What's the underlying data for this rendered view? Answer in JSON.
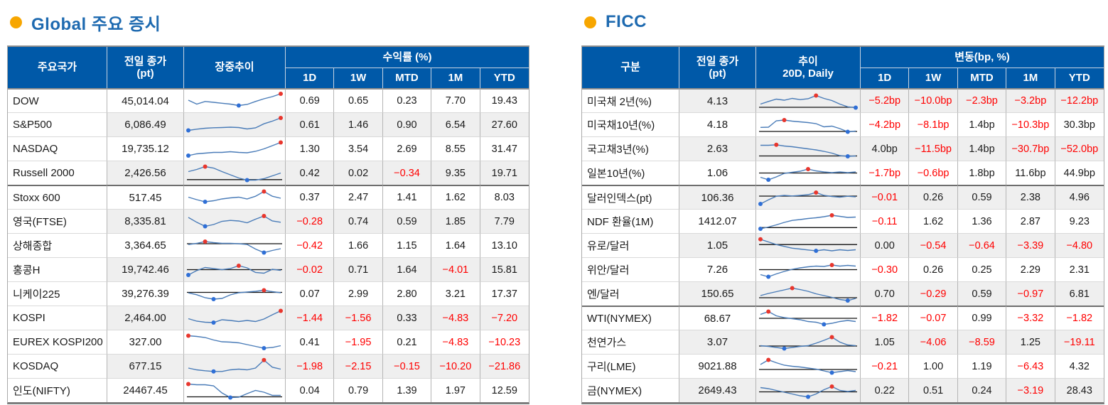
{
  "colors": {
    "header_bg": "#0059a8",
    "title": "#1e6ab0",
    "bullet": "#f7a600",
    "negative": "#ff0000",
    "row_alt": "#efefef",
    "spark_line": "#4a7cb8",
    "spark_max_dot": "#e8362d",
    "spark_min_dot": "#2f6fd6",
    "spark_baseline": "#111111"
  },
  "sections": [
    {
      "id": "global",
      "title": "Global 주요 증시",
      "stripe_start": "white",
      "header": {
        "col1": "주요국가",
        "col2_lines": [
          "전일 종가",
          "(pt)"
        ],
        "col3_lines": [
          "장중추이"
        ],
        "group": "수익률 (%)",
        "periods": [
          "1D",
          "1W",
          "MTD",
          "1M",
          "YTD"
        ]
      },
      "rows": [
        {
          "name": "DOW",
          "price": "45,014.04",
          "values": [
            "0.69",
            "0.65",
            "0.23",
            "7.70",
            "19.43"
          ],
          "spark": [
            0.52,
            0.3,
            0.45,
            0.4,
            0.35,
            0.3,
            0.22,
            0.28,
            0.45,
            0.6,
            0.72,
            0.88
          ],
          "baseline": null,
          "sep_after": false
        },
        {
          "name": "S&P500",
          "price": "6,086.49",
          "values": [
            "0.61",
            "1.46",
            "0.90",
            "6.54",
            "27.60"
          ],
          "spark": [
            0.18,
            0.25,
            0.3,
            0.33,
            0.34,
            0.36,
            0.34,
            0.26,
            0.32,
            0.55,
            0.7,
            0.88
          ],
          "baseline": null,
          "sep_after": false
        },
        {
          "name": "NASDAQ",
          "price": "19,735.12",
          "values": [
            "1.30",
            "3.54",
            "2.69",
            "8.55",
            "31.47"
          ],
          "spark": [
            0.12,
            0.22,
            0.26,
            0.3,
            0.3,
            0.34,
            0.3,
            0.28,
            0.36,
            0.5,
            0.68,
            0.86
          ],
          "baseline": null,
          "sep_after": false
        },
        {
          "name": "Russell 2000",
          "price": "2,426.56",
          "values": [
            "0.42",
            "0.02",
            "−0.34",
            "9.35",
            "19.71"
          ],
          "spark": [
            0.58,
            0.7,
            0.86,
            0.78,
            0.58,
            0.4,
            0.22,
            0.1,
            0.1,
            0.18,
            0.34,
            0.5
          ],
          "baseline": 0.13,
          "sep_after": true
        },
        {
          "name": "Stoxx 600",
          "price": "517.45",
          "values": [
            "0.37",
            "2.47",
            "1.41",
            "1.62",
            "8.03"
          ],
          "spark": [
            0.5,
            0.36,
            0.24,
            0.3,
            0.4,
            0.46,
            0.5,
            0.4,
            0.55,
            0.82,
            0.55,
            0.44
          ],
          "baseline": null,
          "sep_after": false
        },
        {
          "name": "영국(FTSE)",
          "price": "8,335.81",
          "values": [
            "−0.28",
            "0.74",
            "0.59",
            "1.85",
            "7.79"
          ],
          "spark": [
            0.72,
            0.45,
            0.22,
            0.32,
            0.5,
            0.55,
            0.52,
            0.42,
            0.62,
            0.8,
            0.52,
            0.45
          ],
          "baseline": null,
          "sep_after": false
        },
        {
          "name": "상해종합",
          "price": "3,364.65",
          "values": [
            "−0.42",
            "1.66",
            "1.15",
            "1.64",
            "13.10"
          ],
          "spark": [
            0.55,
            0.62,
            0.72,
            0.66,
            0.62,
            0.62,
            0.6,
            0.56,
            0.3,
            0.1,
            0.22,
            0.32
          ],
          "baseline": 0.6,
          "sep_after": false
        },
        {
          "name": "홍콩H",
          "price": "19,742.46",
          "values": [
            "−0.02",
            "0.71",
            "1.64",
            "−4.01",
            "15.81"
          ],
          "spark": [
            0.2,
            0.45,
            0.62,
            0.56,
            0.5,
            0.56,
            0.72,
            0.6,
            0.34,
            0.3,
            0.52,
            0.46
          ],
          "baseline": 0.5,
          "sep_after": false
        },
        {
          "name": "니케이225",
          "price": "39,276.39",
          "values": [
            "0.07",
            "2.99",
            "2.80",
            "3.21",
            "17.37"
          ],
          "spark": [
            0.55,
            0.45,
            0.28,
            0.2,
            0.24,
            0.44,
            0.56,
            0.6,
            0.64,
            0.7,
            0.62,
            0.56
          ],
          "baseline": 0.58,
          "sep_after": false
        },
        {
          "name": "KOSPI",
          "price": "2,464.00",
          "values": [
            "−1.44",
            "−1.56",
            "0.33",
            "−4.83",
            "−7.20"
          ],
          "spark": [
            0.46,
            0.32,
            0.26,
            0.24,
            0.4,
            0.36,
            0.3,
            0.36,
            0.3,
            0.44,
            0.68,
            0.9
          ],
          "baseline": null,
          "sep_after": false
        },
        {
          "name": "EUREX KOSPI200",
          "price": "327.00",
          "values": [
            "0.41",
            "−1.95",
            "0.21",
            "−4.83",
            "−10.23"
          ],
          "spark": [
            0.86,
            0.82,
            0.76,
            0.62,
            0.52,
            0.5,
            0.46,
            0.36,
            0.26,
            0.16,
            0.2,
            0.3
          ],
          "baseline": null,
          "sep_after": false
        },
        {
          "name": "KOSDAQ",
          "price": "677.15",
          "values": [
            "−1.98",
            "−2.15",
            "−0.15",
            "−10.20",
            "−21.86"
          ],
          "spark": [
            0.4,
            0.3,
            0.25,
            0.21,
            0.21,
            0.3,
            0.34,
            0.3,
            0.4,
            0.85,
            0.45,
            0.34
          ],
          "baseline": null,
          "sep_after": false
        },
        {
          "name": "인도(NIFTY)",
          "price": "24467.45",
          "values": [
            "0.04",
            "0.79",
            "1.39",
            "1.97",
            "12.59"
          ],
          "spark": [
            0.86,
            0.82,
            0.82,
            0.76,
            0.36,
            0.1,
            0.12,
            0.32,
            0.5,
            0.4,
            0.22,
            0.22
          ],
          "baseline": 0.14,
          "sep_after": false
        }
      ]
    },
    {
      "id": "ficc",
      "title": "FICC",
      "stripe_start": "gray",
      "header": {
        "col1": "구분",
        "col2_lines": [
          "전일 종가",
          "(pt)"
        ],
        "col3_lines": [
          "추이",
          "20D, Daily"
        ],
        "group": "변동(bp, %)",
        "periods": [
          "1D",
          "1W",
          "MTD",
          "1M",
          "YTD"
        ]
      },
      "rows": [
        {
          "name": "미국채 2년(%)",
          "price": "4.13",
          "values": [
            "−5.2bp",
            "−10.0bp",
            "−2.3bp",
            "−3.2bp",
            "−12.2bp"
          ],
          "spark": [
            0.3,
            0.45,
            0.58,
            0.52,
            0.62,
            0.55,
            0.6,
            0.78,
            0.62,
            0.5,
            0.3,
            0.15,
            0.1
          ],
          "baseline": 0.12,
          "sep_after": false
        },
        {
          "name": "미국채10년(%)",
          "price": "4.18",
          "values": [
            "−4.2bp",
            "−8.1bp",
            "1.4bp",
            "−10.3bp",
            "30.3bp"
          ],
          "spark": [
            0.35,
            0.36,
            0.72,
            0.76,
            0.7,
            0.66,
            0.62,
            0.56,
            0.38,
            0.42,
            0.28,
            0.1,
            0.14
          ],
          "baseline": 0.12,
          "sep_after": false
        },
        {
          "name": "국고채3년(%)",
          "price": "2.63",
          "values": [
            "4.0bp",
            "−11.5bp",
            "1.4bp",
            "−30.7bp",
            "−52.0bp"
          ],
          "spark": [
            0.7,
            0.7,
            0.73,
            0.66,
            0.62,
            0.56,
            0.5,
            0.44,
            0.36,
            0.26,
            0.12,
            0.08,
            0.1
          ],
          "baseline": 0.1,
          "sep_after": false
        },
        {
          "name": "일본10년(%)",
          "price": "1.06",
          "values": [
            "−1.7bp",
            "−0.6bp",
            "1.8bp",
            "11.6bp",
            "44.9bp"
          ],
          "spark": [
            0.26,
            0.12,
            0.28,
            0.48,
            0.54,
            0.6,
            0.72,
            0.62,
            0.56,
            0.52,
            0.56,
            0.52,
            0.56
          ],
          "baseline": 0.5,
          "sep_after": true
        },
        {
          "name": "달러인덱스(pt)",
          "price": "106.36",
          "values": [
            "−0.01",
            "0.26",
            "0.59",
            "2.38",
            "4.96"
          ],
          "spark": [
            0.12,
            0.35,
            0.55,
            0.6,
            0.57,
            0.6,
            0.64,
            0.76,
            0.6,
            0.54,
            0.5,
            0.55,
            0.52
          ],
          "baseline": 0.56,
          "sep_after": false
        },
        {
          "name": "NDF 환율(1M)",
          "price": "1412.07",
          "values": [
            "−0.11",
            "1.62",
            "1.36",
            "2.87",
            "9.23"
          ],
          "spark": [
            0.08,
            0.18,
            0.3,
            0.44,
            0.55,
            0.6,
            0.66,
            0.7,
            0.76,
            0.84,
            0.78,
            0.72,
            0.74
          ],
          "baseline": 0.15,
          "sep_after": false
        },
        {
          "name": "유로/달러",
          "price": "1.05",
          "values": [
            "0.00",
            "−0.54",
            "−0.64",
            "−3.39",
            "−4.80"
          ],
          "spark": [
            0.85,
            0.7,
            0.55,
            0.45,
            0.35,
            0.3,
            0.25,
            0.2,
            0.26,
            0.2,
            0.26,
            0.22,
            0.26
          ],
          "baseline": 0.55,
          "sep_after": false
        },
        {
          "name": "위안/달러",
          "price": "7.26",
          "values": [
            "−0.30",
            "0.26",
            "0.25",
            "2.29",
            "2.31"
          ],
          "spark": [
            0.22,
            0.1,
            0.26,
            0.4,
            0.52,
            0.6,
            0.66,
            0.7,
            0.68,
            0.76,
            0.7,
            0.74,
            0.7
          ],
          "baseline": 0.5,
          "sep_after": false
        },
        {
          "name": "엔/달러",
          "price": "150.65",
          "values": [
            "0.70",
            "−0.29",
            "0.59",
            "−0.97",
            "6.81"
          ],
          "spark": [
            0.4,
            0.52,
            0.62,
            0.72,
            0.82,
            0.74,
            0.64,
            0.5,
            0.4,
            0.3,
            0.18,
            0.12,
            0.24
          ],
          "baseline": 0.28,
          "sep_after": true
        },
        {
          "name": "WTI(NYMEX)",
          "price": "68.67",
          "values": [
            "−1.82",
            "−0.07",
            "0.99",
            "−3.32",
            "−1.82"
          ],
          "spark": [
            0.7,
            0.86,
            0.62,
            0.52,
            0.46,
            0.4,
            0.3,
            0.26,
            0.14,
            0.2,
            0.3,
            0.36,
            0.3
          ],
          "baseline": 0.48,
          "sep_after": false
        },
        {
          "name": "천연가스",
          "price": "3.07",
          "values": [
            "1.05",
            "−4.06",
            "−8.59",
            "1.25",
            "−19.11"
          ],
          "spark": [
            0.3,
            0.26,
            0.2,
            0.14,
            0.2,
            0.26,
            0.3,
            0.44,
            0.6,
            0.78,
            0.5,
            0.34,
            0.3
          ],
          "baseline": 0.28,
          "sep_after": false
        },
        {
          "name": "구리(LME)",
          "price": "9021.88",
          "values": [
            "−0.21",
            "1.00",
            "1.19",
            "−6.43",
            "4.32"
          ],
          "spark": [
            0.6,
            0.86,
            0.7,
            0.56,
            0.5,
            0.46,
            0.4,
            0.34,
            0.24,
            0.14,
            0.2,
            0.26,
            0.2
          ],
          "baseline": 0.32,
          "sep_after": false
        },
        {
          "name": "금(NYMEX)",
          "price": "2649.43",
          "values": [
            "0.22",
            "0.51",
            "0.24",
            "−3.19",
            "28.43"
          ],
          "spark": [
            0.66,
            0.6,
            0.5,
            0.4,
            0.3,
            0.2,
            0.14,
            0.3,
            0.54,
            0.72,
            0.5,
            0.44,
            0.5
          ],
          "baseline": 0.42,
          "sep_after": false
        }
      ]
    }
  ]
}
